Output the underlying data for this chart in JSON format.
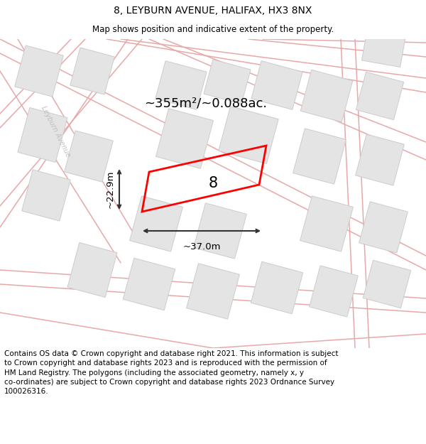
{
  "title": "8, LEYBURN AVENUE, HALIFAX, HX3 8NX",
  "subtitle": "Map shows position and indicative extent of the property.",
  "footer": "Contains OS data © Crown copyright and database right 2021. This information is subject\nto Crown copyright and database rights 2023 and is reproduced with the permission of\nHM Land Registry. The polygons (including the associated geometry, namely x, y\nco-ordinates) are subject to Crown copyright and database rights 2023 Ordnance Survey\n100026316.",
  "area_label": "~355m²/~0.088ac.",
  "width_label": "~37.0m",
  "height_label": "~22.9m",
  "number_label": "8",
  "map_bg": "#f7f7f7",
  "road_color": "#e8a8a8",
  "building_fill": "#e4e4e4",
  "building_edge": "#cccccc",
  "plot_color": "#ff0000",
  "street_label": "Leyburn Avenue",
  "title_fontsize": 10,
  "subtitle_fontsize": 8.5,
  "footer_fontsize": 7.5
}
